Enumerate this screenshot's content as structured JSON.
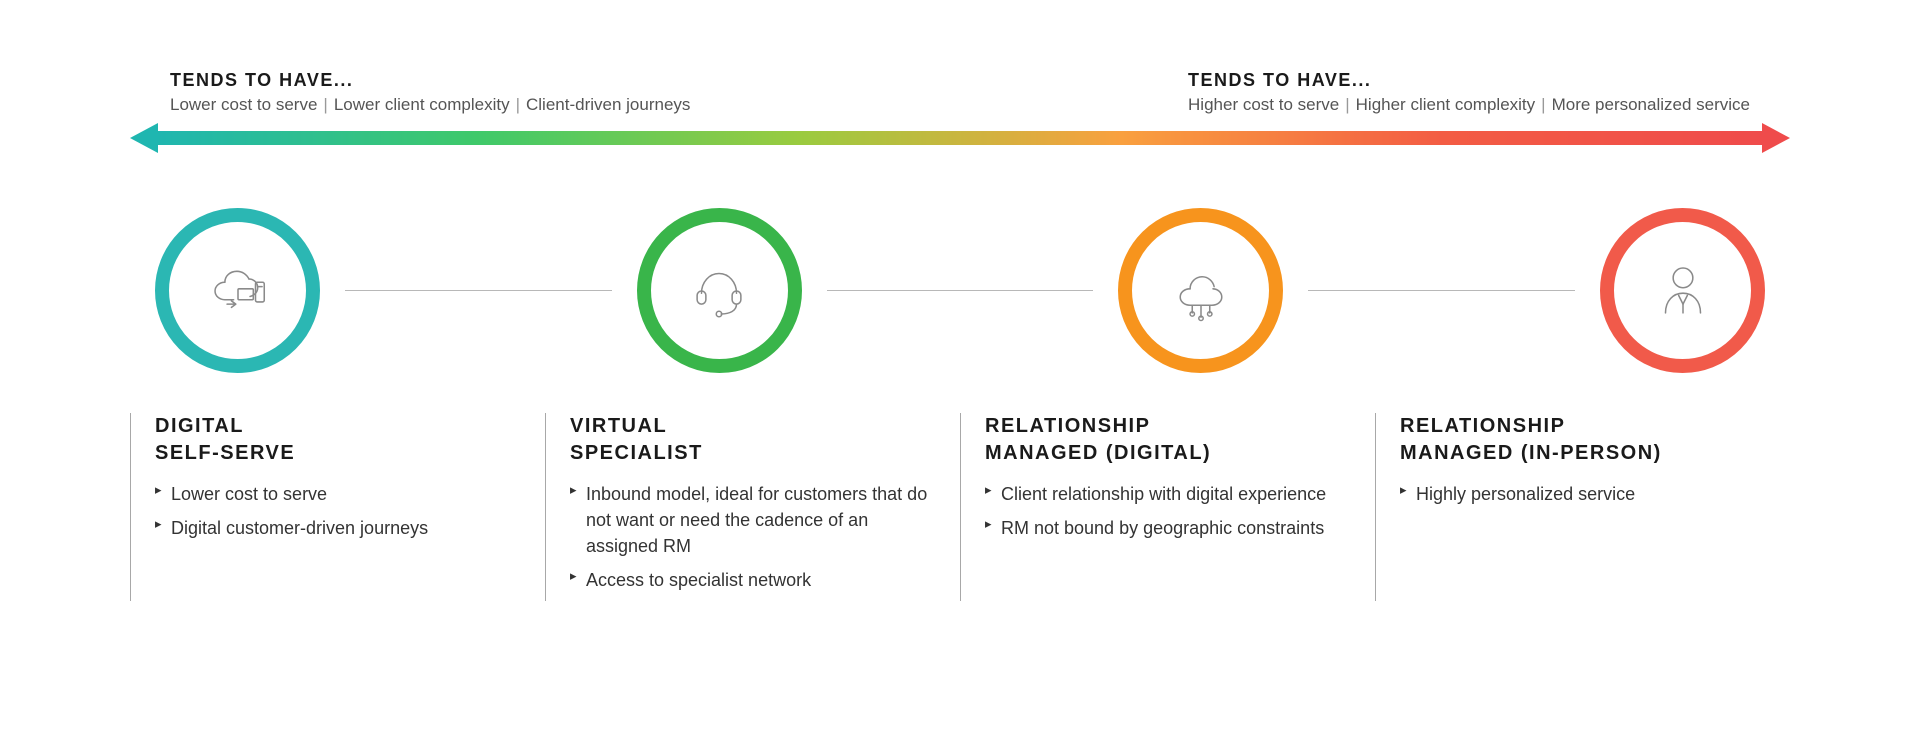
{
  "spectrum": {
    "left": {
      "heading": "TENDS TO HAVE...",
      "attrs": [
        "Lower cost to serve",
        "Lower client complexity",
        "Client-driven journeys"
      ]
    },
    "right": {
      "heading": "TENDS TO HAVE...",
      "attrs": [
        "Higher cost to serve",
        "Higher client complexity",
        "More personalized service"
      ]
    },
    "gradient_colors": [
      "#1fb6b0",
      "#3fc96a",
      "#9acb3f",
      "#f9a03f",
      "#f35c44",
      "#ef4b4b"
    ],
    "arrow_left_color": "#1fb6b0",
    "arrow_right_color": "#ef4b4b"
  },
  "circle_ring_width": 14,
  "models": [
    {
      "id": "digital-self-serve",
      "title_line1": "DIGITAL",
      "title_line2": "SELF-SERVE",
      "color": "#2bb7b3",
      "icon": "cloud-devices-icon",
      "bullets": [
        "Lower cost to serve",
        "Digital customer-driven journeys"
      ]
    },
    {
      "id": "virtual-specialist",
      "title_line1": "VIRTUAL",
      "title_line2": "SPECIALIST",
      "color": "#39b54a",
      "icon": "headset-icon",
      "bullets": [
        "Inbound model, ideal for customers that do not want or need the cadence of an assigned RM",
        "Access to specialist network"
      ]
    },
    {
      "id": "relationship-managed-digital",
      "title_line1": "RELATIONSHIP",
      "title_line2": "MANAGED (DIGITAL)",
      "color": "#f7941d",
      "icon": "cloud-network-icon",
      "bullets": [
        "Client relationship with digital experience",
        "RM not bound by geographic constraints"
      ]
    },
    {
      "id": "relationship-managed-in-person",
      "title_line1": "RELATIONSHIP",
      "title_line2": "MANAGED (IN-PERSON)",
      "color": "#f15a4a",
      "icon": "person-icon",
      "bullets": [
        "Highly personalized service"
      ]
    }
  ]
}
